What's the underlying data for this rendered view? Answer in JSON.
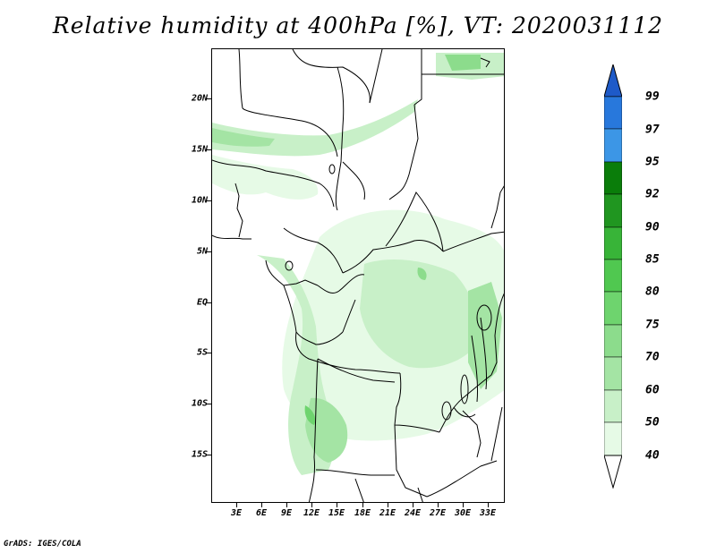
{
  "title": "Relative humidity at 400hPa [%], VT: 2020031112",
  "credit": "GrADS: IGES/COLA",
  "map": {
    "lat_labels": [
      "20N",
      "15N",
      "10N",
      "5N",
      "EQ",
      "5S",
      "10S",
      "15S"
    ],
    "lon_labels": [
      "3E",
      "6E",
      "9E",
      "12E",
      "15E",
      "18E",
      "21E",
      "24E",
      "27E",
      "30E",
      "33E"
    ]
  },
  "colorbar": {
    "levels": [
      "40",
      "50",
      "60",
      "70",
      "75",
      "80",
      "85",
      "90",
      "92",
      "95",
      "97",
      "99"
    ],
    "colors": [
      "#ffffff",
      "#e6fae6",
      "#c8f0c8",
      "#a4e4a4",
      "#8cdc8c",
      "#6ed46e",
      "#50c850",
      "#38b438",
      "#209620",
      "#0a7d0a",
      "#3c96e6",
      "#2878dc",
      "#1e5ac8"
    ]
  },
  "colors": {
    "land_outline": "#000000",
    "accent_green": "#50c850"
  }
}
